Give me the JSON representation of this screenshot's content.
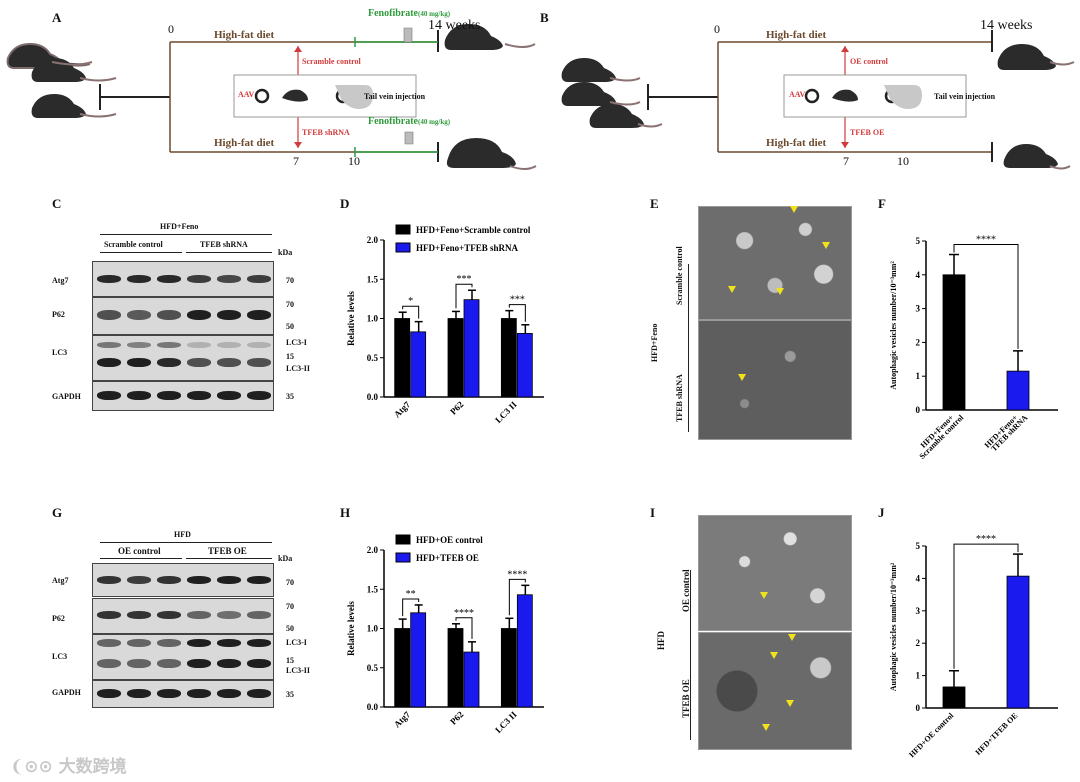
{
  "panels": {
    "A": "A",
    "B": "B",
    "C": "C",
    "D": "D",
    "E": "E",
    "F": "F",
    "G": "G",
    "H": "H",
    "I": "I",
    "J": "J"
  },
  "schemeA": {
    "t0": "0",
    "diet_top": "High-fat diet",
    "diet_bottom": "High-fat diet",
    "feno_top": "Fenofibrate",
    "dose_top": "(40 mg/kg)",
    "feno_bottom": "Fenofibrate",
    "dose_bottom": "(40 mg/kg)",
    "end": "14 weeks",
    "scramble": "Scramble control",
    "shrna": "TFEB shRNA",
    "aav": "AAV",
    "tail": "Tail vein injection",
    "t7": "7",
    "t10": "10"
  },
  "schemeB": {
    "t0": "0",
    "diet_top": "High-fat diet",
    "diet_bottom": "High-fat diet",
    "end": "14 weeks",
    "oe_ctrl": "OE control",
    "oe": "TFEB OE",
    "aav": "AAV",
    "tail": "Tail vein injection",
    "t7": "7",
    "t10": "10"
  },
  "blotC": {
    "header": "HFD+Feno",
    "group1": "Scramble control",
    "group2": "TFEB shRNA",
    "kda": "kDa",
    "rows": [
      "Atg7",
      "P62",
      "LC3",
      "GAPDH"
    ],
    "markers": [
      "70",
      "70",
      "50",
      "LC3-I",
      "15",
      "LC3-II",
      "35"
    ]
  },
  "blotG": {
    "header": "HFD",
    "group1": "OE control",
    "group2": "TFEB OE",
    "kda": "kDa",
    "rows": [
      "Atg7",
      "P62",
      "LC3",
      "GAPDH"
    ],
    "markers": [
      "70",
      "70",
      "50",
      "LC3-I",
      "15",
      "LC3-II",
      "35"
    ]
  },
  "emE": {
    "side": "HFD+Feno",
    "top": "Scramble control",
    "bottom": "TFEB shRNA"
  },
  "emI": {
    "side": "HFD",
    "top": "OE control",
    "bottom": "TFEB OE"
  },
  "watermark": "大数跨境",
  "colors": {
    "black": "#000000",
    "blue": "#1a1aee",
    "arrow_red": "#d23b3b",
    "feno_green": "#2e9b3a",
    "diet_brown": "#6b4a2e",
    "em_arrow": "#f2e21b"
  },
  "chart_data": [
    {
      "id": "D",
      "type": "bar",
      "categories": [
        "Atg7",
        "P62",
        "LC3 II"
      ],
      "series": [
        {
          "name": "HFD+Feno+Scramble control",
          "values": [
            1.0,
            1.0,
            1.0
          ],
          "errors": [
            0.08,
            0.09,
            0.1
          ]
        },
        {
          "name": "HFD+Feno+TFEB shRNA",
          "values": [
            0.83,
            1.24,
            0.81
          ],
          "errors": [
            0.13,
            0.12,
            0.11
          ]
        }
      ],
      "ylabel": "Relative levels",
      "ylim": [
        0,
        2.0
      ],
      "yticks": [
        "0.0",
        "0.5",
        "1.0",
        "1.5",
        "2.0"
      ],
      "significance": [
        "*",
        "***",
        "***"
      ],
      "legend": "top"
    },
    {
      "id": "F",
      "type": "bar",
      "categories": [
        "HFD+Feno+ Scramble control",
        "HFD+Feno+ TFEB shRNA"
      ],
      "values": [
        4.0,
        1.15
      ],
      "errors": [
        0.6,
        0.6
      ],
      "colors": [
        "#000000",
        "#1a1aee"
      ],
      "ylabel": "Autophagic vesicles number/10⁻³mm²",
      "ylim": [
        0,
        5
      ],
      "yticks": [
        "0",
        "1",
        "2",
        "3",
        "4",
        "5"
      ],
      "significance": "****"
    },
    {
      "id": "H",
      "type": "bar",
      "categories": [
        "Atg7",
        "P62",
        "LC3 II"
      ],
      "series": [
        {
          "name": "HFD+OE control",
          "values": [
            1.0,
            1.0,
            1.0
          ],
          "errors": [
            0.12,
            0.06,
            0.13
          ]
        },
        {
          "name": "HFD+TFEB OE",
          "values": [
            1.2,
            0.7,
            1.43
          ],
          "errors": [
            0.1,
            0.13,
            0.12
          ]
        }
      ],
      "ylabel": "Relative levels",
      "ylim": [
        0,
        2.0
      ],
      "yticks": [
        "0.0",
        "0.5",
        "1.0",
        "1.5",
        "2.0"
      ],
      "significance": [
        "**",
        "****",
        "****"
      ],
      "legend": "top"
    },
    {
      "id": "J",
      "type": "bar",
      "categories": [
        "HFD+OE control",
        "HFD+TFEB OE"
      ],
      "values": [
        0.65,
        4.07
      ],
      "errors": [
        0.5,
        0.68
      ],
      "colors": [
        "#000000",
        "#1a1aee"
      ],
      "ylabel": "Autophagic vesicles number/10⁻³mm²",
      "ylim": [
        0,
        5
      ],
      "yticks": [
        "0",
        "1",
        "2",
        "3",
        "4",
        "5"
      ],
      "significance": "****"
    }
  ]
}
